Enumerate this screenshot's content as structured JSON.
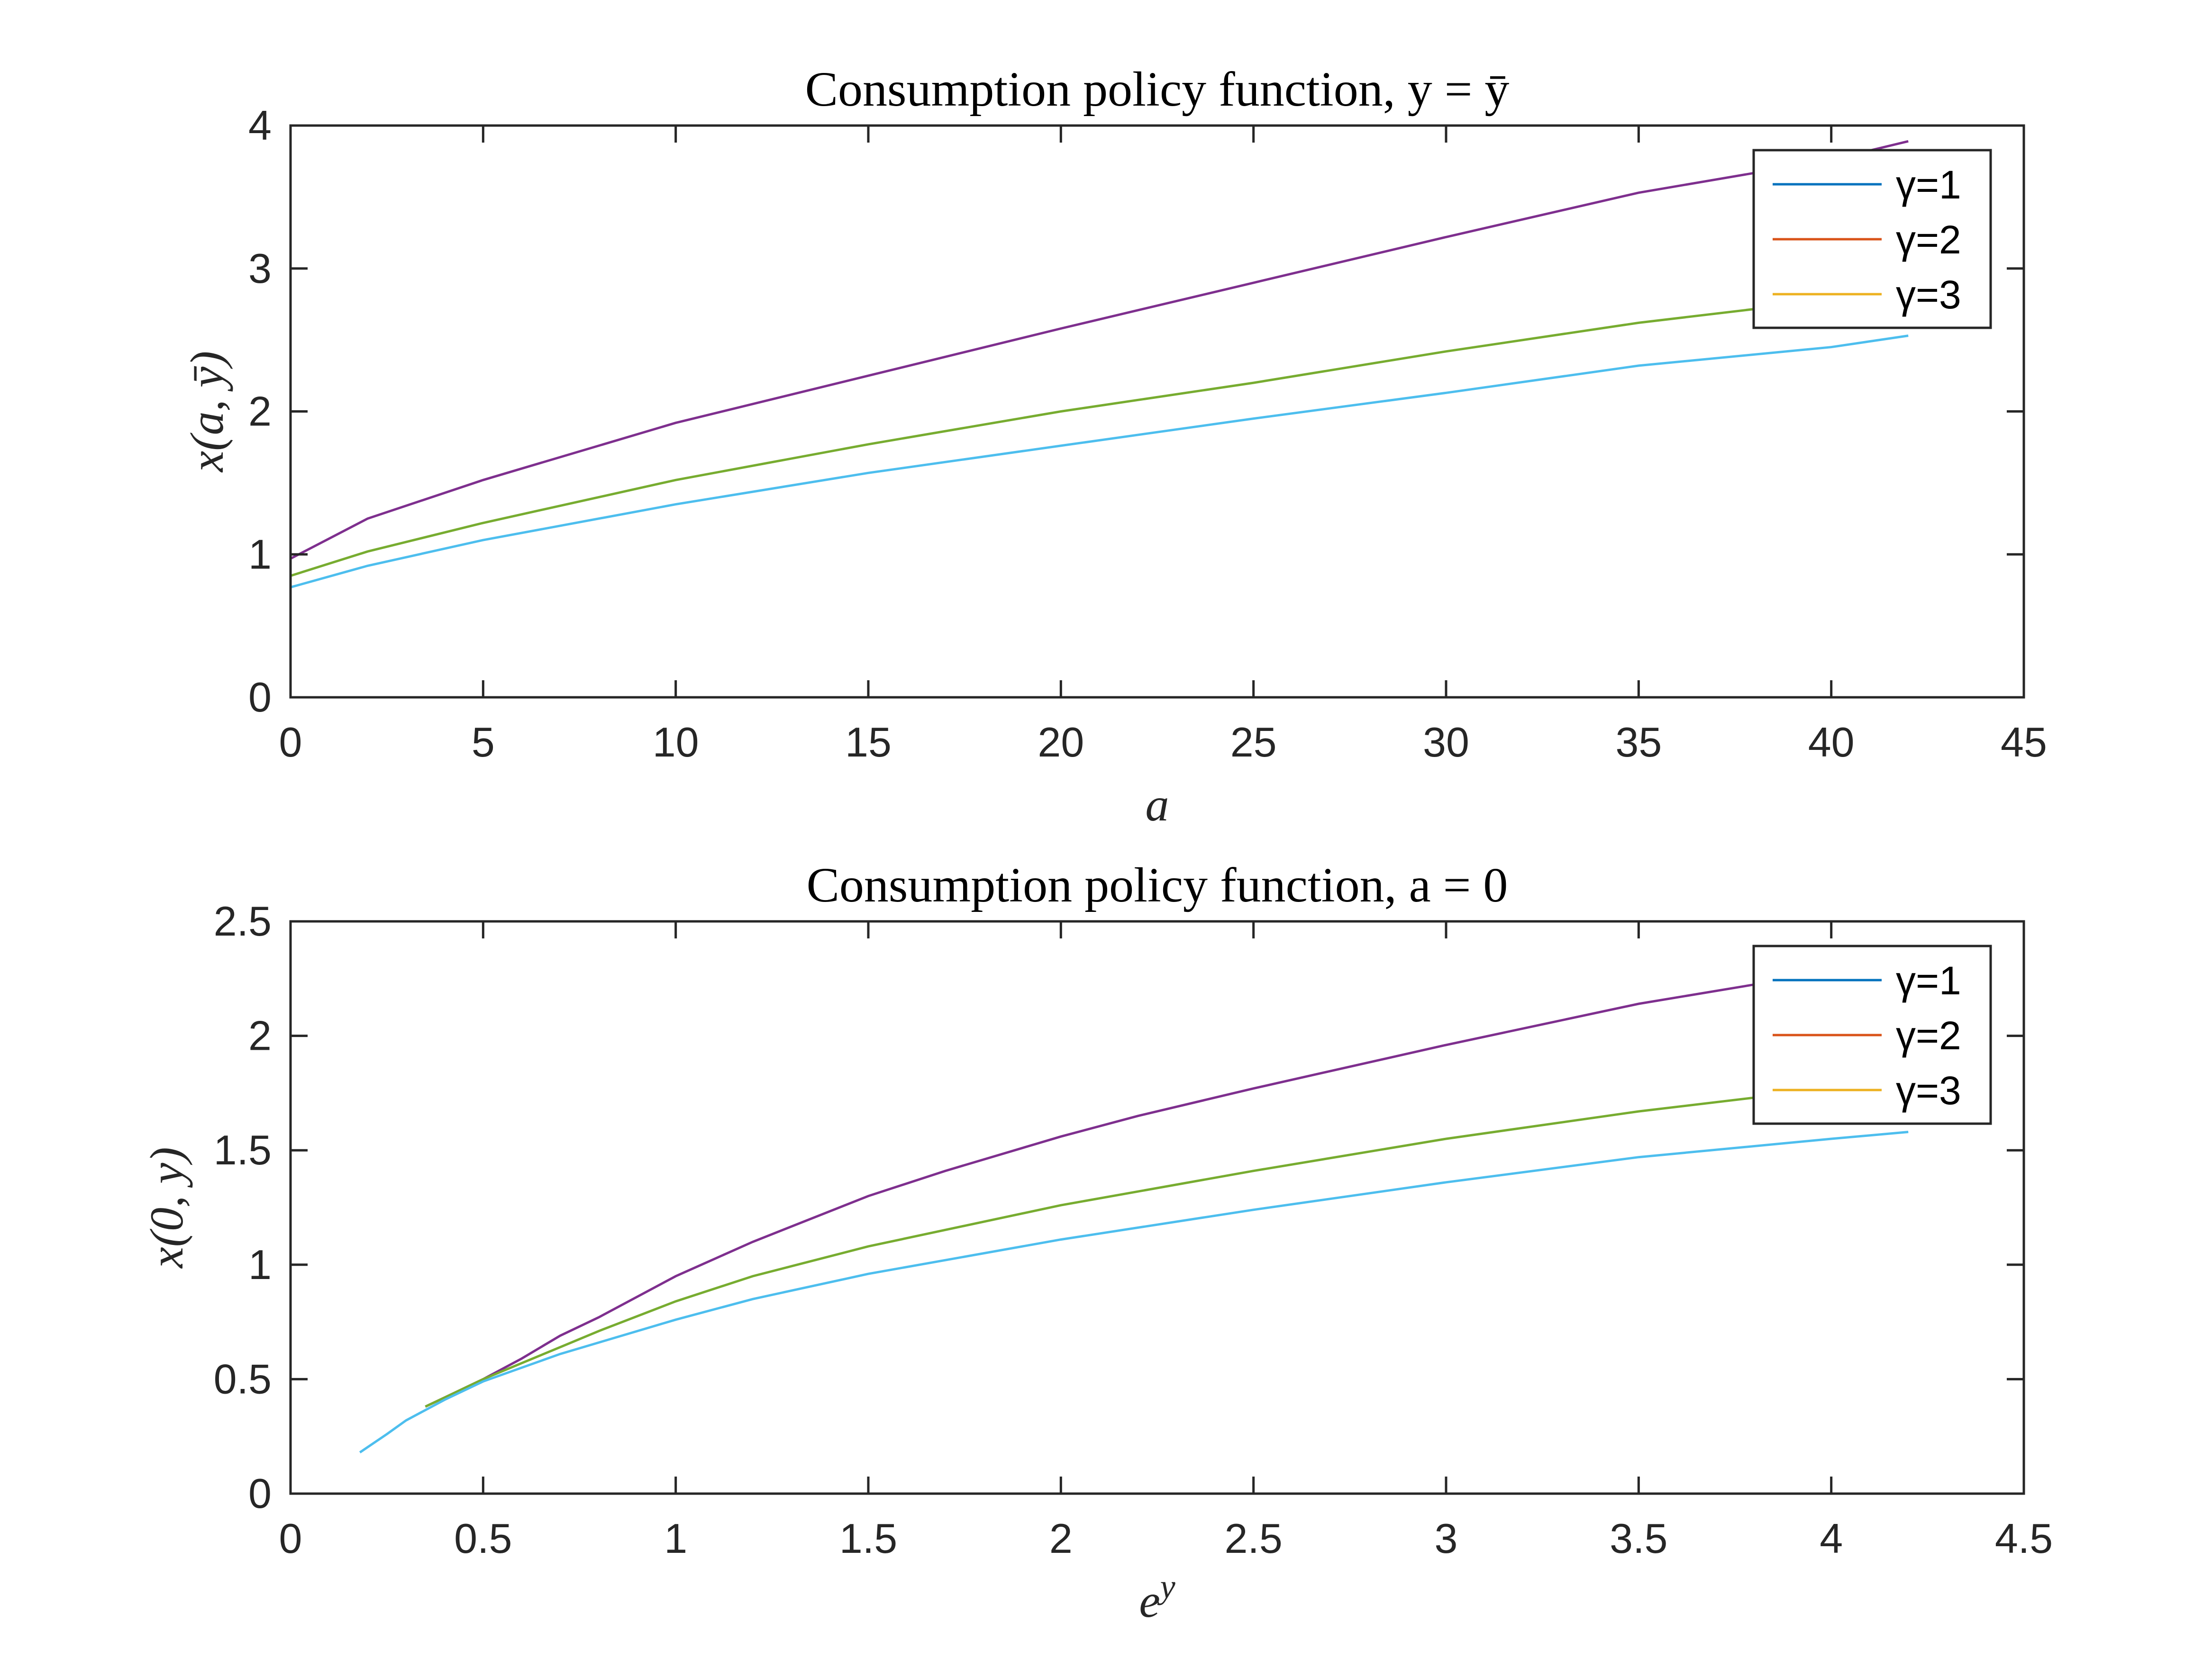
{
  "chart_data": [
    {
      "type": "line",
      "title": "Consumption policy function, y = ȳ",
      "xlabel": "a",
      "ylabel": "x(a, ȳ)",
      "xlim": [
        0,
        45
      ],
      "ylim": [
        0,
        4
      ],
      "xticks": [
        0,
        5,
        10,
        15,
        20,
        25,
        30,
        35,
        40,
        45
      ],
      "yticks": [
        0,
        1,
        2,
        3,
        4
      ],
      "grid": false,
      "legend_position": "top-right",
      "legend": [
        {
          "name": "γ=1",
          "color": "#0072BD"
        },
        {
          "name": "γ=2",
          "color": "#D95319"
        },
        {
          "name": "γ=3",
          "color": "#EDB120"
        }
      ],
      "series": [
        {
          "color": "#7E2F8E",
          "x": [
            0,
            2,
            5,
            10,
            15,
            20,
            25,
            30,
            35,
            40,
            42
          ],
          "y": [
            0.97,
            1.25,
            1.52,
            1.92,
            2.25,
            2.58,
            2.9,
            3.22,
            3.53,
            3.76,
            3.89
          ]
        },
        {
          "color": "#77AC30",
          "x": [
            0,
            2,
            5,
            10,
            15,
            20,
            25,
            30,
            35,
            40,
            42
          ],
          "y": [
            0.85,
            1.02,
            1.22,
            1.52,
            1.77,
            2.0,
            2.2,
            2.42,
            2.62,
            2.78,
            2.84
          ]
        },
        {
          "color": "#4DBEEE",
          "x": [
            0,
            2,
            5,
            10,
            15,
            20,
            25,
            30,
            35,
            40,
            42
          ],
          "y": [
            0.77,
            0.92,
            1.1,
            1.35,
            1.57,
            1.76,
            1.95,
            2.13,
            2.32,
            2.45,
            2.53
          ]
        }
      ]
    },
    {
      "type": "line",
      "title": "Consumption policy function, a = 0",
      "xlabel": "e^y",
      "ylabel": "x(0, y)",
      "xlim": [
        0,
        4.5
      ],
      "ylim": [
        0,
        2.5
      ],
      "xticks": [
        0,
        0.5,
        1,
        1.5,
        2,
        2.5,
        3,
        3.5,
        4,
        4.5
      ],
      "yticks": [
        0,
        0.5,
        1,
        1.5,
        2,
        2.5
      ],
      "grid": false,
      "legend_position": "top-right",
      "legend": [
        {
          "name": "γ=1",
          "color": "#0072BD"
        },
        {
          "name": "γ=2",
          "color": "#D95319"
        },
        {
          "name": "γ=3",
          "color": "#EDB120"
        }
      ],
      "series": [
        {
          "color": "#7E2F8E",
          "x": [
            0.35,
            0.4,
            0.5,
            0.6,
            0.7,
            0.8,
            1.0,
            1.2,
            1.5,
            1.7,
            2.0,
            2.2,
            2.5,
            3.0,
            3.5,
            4.0,
            4.2
          ],
          "y": [
            0.38,
            0.42,
            0.5,
            0.59,
            0.69,
            0.77,
            0.95,
            1.1,
            1.3,
            1.41,
            1.56,
            1.65,
            1.77,
            1.96,
            2.14,
            2.28,
            2.35
          ]
        },
        {
          "color": "#77AC30",
          "x": [
            0.35,
            0.4,
            0.5,
            0.6,
            0.7,
            0.8,
            1.0,
            1.2,
            1.5,
            2.0,
            2.5,
            3.0,
            3.5,
            4.0,
            4.2
          ],
          "y": [
            0.38,
            0.42,
            0.5,
            0.57,
            0.64,
            0.71,
            0.84,
            0.95,
            1.08,
            1.26,
            1.41,
            1.55,
            1.67,
            1.77,
            1.81
          ]
        },
        {
          "color": "#4DBEEE",
          "x": [
            0.18,
            0.25,
            0.3,
            0.4,
            0.5,
            0.6,
            0.7,
            0.8,
            1.0,
            1.2,
            1.5,
            2.0,
            2.5,
            3.0,
            3.5,
            4.0,
            4.2
          ],
          "y": [
            0.18,
            0.26,
            0.32,
            0.41,
            0.49,
            0.55,
            0.61,
            0.66,
            0.76,
            0.85,
            0.96,
            1.11,
            1.24,
            1.36,
            1.47,
            1.55,
            1.58
          ]
        }
      ]
    }
  ]
}
